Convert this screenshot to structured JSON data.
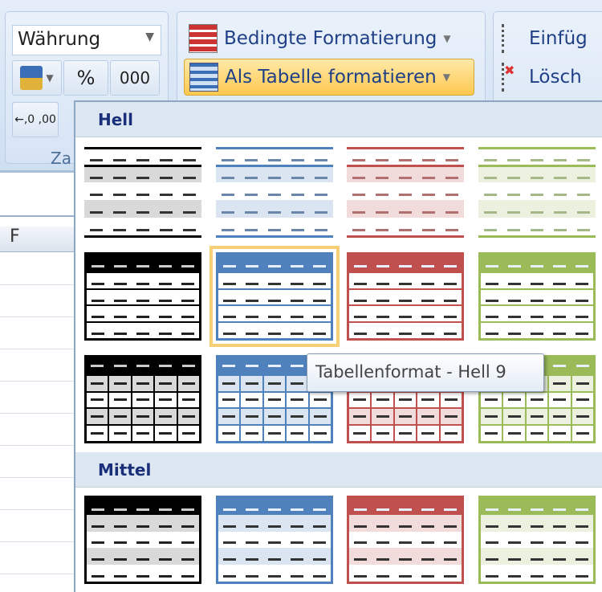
{
  "ribbon": {
    "number_format": "Währung",
    "percent": "%",
    "thousands": "000",
    "increase_decimal": "←,0 ,00",
    "group_label": "Za",
    "conditional_formatting": "Bedingte Formatierung",
    "format_as_table": "Als Tabelle formatieren",
    "insert": "Einfüg",
    "delete": "Lösch"
  },
  "sheet": {
    "column": "F"
  },
  "gallery": {
    "sections": [
      {
        "label": "Hell",
        "rows": [
          {
            "style": "lines",
            "colors": [
              "black",
              "blue",
              "red",
              "green"
            ]
          },
          {
            "style": "header-box",
            "colors": [
              "black",
              "blue",
              "red",
              "green"
            ]
          },
          {
            "style": "grid",
            "colors": [
              "black",
              "blue",
              "red",
              "green"
            ]
          }
        ]
      },
      {
        "label": "Mittel",
        "rows": [
          {
            "style": "header-banded",
            "colors": [
              "black",
              "blue",
              "red",
              "green"
            ]
          }
        ]
      }
    ],
    "selected": "Hell 9",
    "tooltip": "Tabellenformat - Hell 9",
    "palette": {
      "black": {
        "main": "#000000",
        "light": "#d9d9d9",
        "dash": "#333333"
      },
      "blue": {
        "main": "#4f81bd",
        "light": "#dbe5f1",
        "dash": "#6a86a8"
      },
      "red": {
        "main": "#c0504d",
        "light": "#f2dcdb",
        "dash": "#b07070"
      },
      "green": {
        "main": "#9bbb59",
        "light": "#ebf1de",
        "dash": "#a4b888"
      }
    }
  }
}
